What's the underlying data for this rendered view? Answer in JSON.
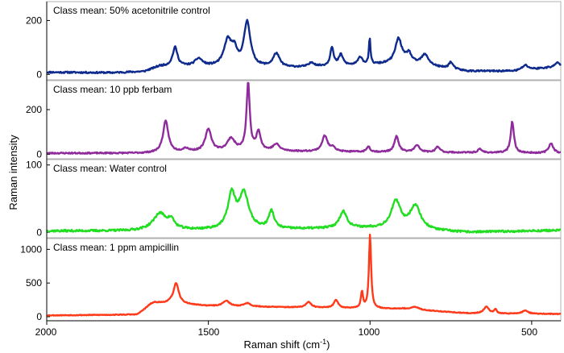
{
  "chart_data": {
    "type": "line",
    "xlabel": "Raman shift (cm-1)",
    "xlabel_parts": {
      "main": "Raman shift (cm",
      "sup": "-1",
      "close": ")"
    },
    "ylabel": "Raman intensity",
    "xlim": [
      2000,
      410
    ],
    "xticks": [
      {
        "value": 2000,
        "label": "2000"
      },
      {
        "value": 1500,
        "label": "1500"
      },
      {
        "value": 1000,
        "label": "1000"
      },
      {
        "value": 500,
        "label": "500"
      }
    ],
    "panels": [
      {
        "title": "Class mean: 50% acetonitrile control",
        "color": "#0d2a8c",
        "ylim": [
          -20,
          270
        ],
        "yticks": [
          {
            "value": 0,
            "label": "0"
          },
          {
            "value": 200,
            "label": "200"
          }
        ],
        "baseline": [
          [
            2000,
            8
          ],
          [
            1800,
            6
          ],
          [
            1700,
            10
          ],
          [
            1650,
            30
          ],
          [
            1250,
            25
          ],
          [
            1000,
            35
          ],
          [
            900,
            42
          ],
          [
            700,
            12
          ],
          [
            550,
            12
          ],
          [
            410,
            30
          ]
        ],
        "peaks": [
          {
            "x": 1603,
            "h": 70,
            "w": 9
          },
          {
            "x": 1530,
            "h": 28,
            "w": 14
          },
          {
            "x": 1440,
            "h": 95,
            "w": 14
          },
          {
            "x": 1420,
            "h": 50,
            "w": 10
          },
          {
            "x": 1380,
            "h": 165,
            "w": 12
          },
          {
            "x": 1290,
            "h": 50,
            "w": 12
          },
          {
            "x": 1180,
            "h": 15,
            "w": 10
          },
          {
            "x": 1118,
            "h": 70,
            "w": 6
          },
          {
            "x": 1090,
            "h": 40,
            "w": 8
          },
          {
            "x": 1030,
            "h": 30,
            "w": 8
          },
          {
            "x": 1001,
            "h": 95,
            "w": 3
          },
          {
            "x": 912,
            "h": 90,
            "w": 12
          },
          {
            "x": 880,
            "h": 35,
            "w": 10
          },
          {
            "x": 830,
            "h": 40,
            "w": 14
          },
          {
            "x": 750,
            "h": 25,
            "w": 8
          },
          {
            "x": 520,
            "h": 18,
            "w": 12
          },
          {
            "x": 420,
            "h": 15,
            "w": 8
          }
        ],
        "noise": 3,
        "seed": 11
      },
      {
        "title": "Class mean: 10 ppb ferbam",
        "color": "#8e2c9c",
        "ylim": [
          -20,
          330
        ],
        "yticks": [
          {
            "value": 0,
            "label": "0"
          },
          {
            "value": 200,
            "label": "200"
          }
        ],
        "baseline": [
          [
            2000,
            5
          ],
          [
            1700,
            5
          ],
          [
            1400,
            15
          ],
          [
            1000,
            10
          ],
          [
            410,
            5
          ]
        ],
        "peaks": [
          {
            "x": 1632,
            "h": 140,
            "w": 10
          },
          {
            "x": 1570,
            "h": 15,
            "w": 12
          },
          {
            "x": 1500,
            "h": 100,
            "w": 11
          },
          {
            "x": 1430,
            "h": 55,
            "w": 14
          },
          {
            "x": 1377,
            "h": 300,
            "w": 6
          },
          {
            "x": 1345,
            "h": 85,
            "w": 8
          },
          {
            "x": 1290,
            "h": 30,
            "w": 12
          },
          {
            "x": 1140,
            "h": 70,
            "w": 10
          },
          {
            "x": 1115,
            "h": 20,
            "w": 8
          },
          {
            "x": 1005,
            "h": 25,
            "w": 6
          },
          {
            "x": 918,
            "h": 70,
            "w": 8
          },
          {
            "x": 855,
            "h": 30,
            "w": 10
          },
          {
            "x": 790,
            "h": 25,
            "w": 8
          },
          {
            "x": 660,
            "h": 15,
            "w": 8
          },
          {
            "x": 560,
            "h": 140,
            "w": 6
          },
          {
            "x": 440,
            "h": 45,
            "w": 8
          }
        ],
        "noise": 3,
        "seed": 23
      },
      {
        "title": "Class mean: Water control",
        "color": "#22dd22",
        "ylim": [
          -8,
          108
        ],
        "yticks": [
          {
            "value": 0,
            "label": "0"
          },
          {
            "value": 100,
            "label": "100"
          }
        ],
        "baseline": [
          [
            2000,
            2
          ],
          [
            1750,
            2
          ],
          [
            1000,
            6
          ],
          [
            700,
            0
          ],
          [
            410,
            3
          ]
        ],
        "peaks": [
          {
            "x": 1650,
            "h": 25,
            "w": 25
          },
          {
            "x": 1615,
            "h": 12,
            "w": 12
          },
          {
            "x": 1428,
            "h": 50,
            "w": 14
          },
          {
            "x": 1390,
            "h": 52,
            "w": 18
          },
          {
            "x": 1305,
            "h": 26,
            "w": 10
          },
          {
            "x": 1083,
            "h": 25,
            "w": 14
          },
          {
            "x": 920,
            "h": 40,
            "w": 18
          },
          {
            "x": 860,
            "h": 35,
            "w": 20
          }
        ],
        "noise": 1.5,
        "seed": 37
      },
      {
        "title": "Class mean: 1 ppm ampicillin",
        "color": "#ff3a1a",
        "ylim": [
          -60,
          1160
        ],
        "yticks": [
          {
            "value": 0,
            "label": "0"
          },
          {
            "value": 500,
            "label": "500"
          },
          {
            "value": 1000,
            "label": "1000"
          }
        ],
        "baseline": [
          [
            2000,
            20
          ],
          [
            1720,
            30
          ],
          [
            1680,
            160
          ],
          [
            1620,
            200
          ],
          [
            1500,
            160
          ],
          [
            1000,
            120
          ],
          [
            900,
            120
          ],
          [
            700,
            50
          ],
          [
            410,
            40
          ]
        ],
        "peaks": [
          {
            "x": 1665,
            "h": 40,
            "w": 20
          },
          {
            "x": 1600,
            "h": 300,
            "w": 10
          },
          {
            "x": 1445,
            "h": 80,
            "w": 12
          },
          {
            "x": 1380,
            "h": 50,
            "w": 12
          },
          {
            "x": 1190,
            "h": 80,
            "w": 10
          },
          {
            "x": 1105,
            "h": 120,
            "w": 8
          },
          {
            "x": 1025,
            "h": 240,
            "w": 4
          },
          {
            "x": 1000,
            "h": 1100,
            "w": 4
          },
          {
            "x": 860,
            "h": 40,
            "w": 12
          },
          {
            "x": 640,
            "h": 100,
            "w": 10
          },
          {
            "x": 612,
            "h": 60,
            "w": 4
          },
          {
            "x": 520,
            "h": 50,
            "w": 10
          }
        ],
        "noise": 6,
        "seed": 53
      }
    ]
  }
}
